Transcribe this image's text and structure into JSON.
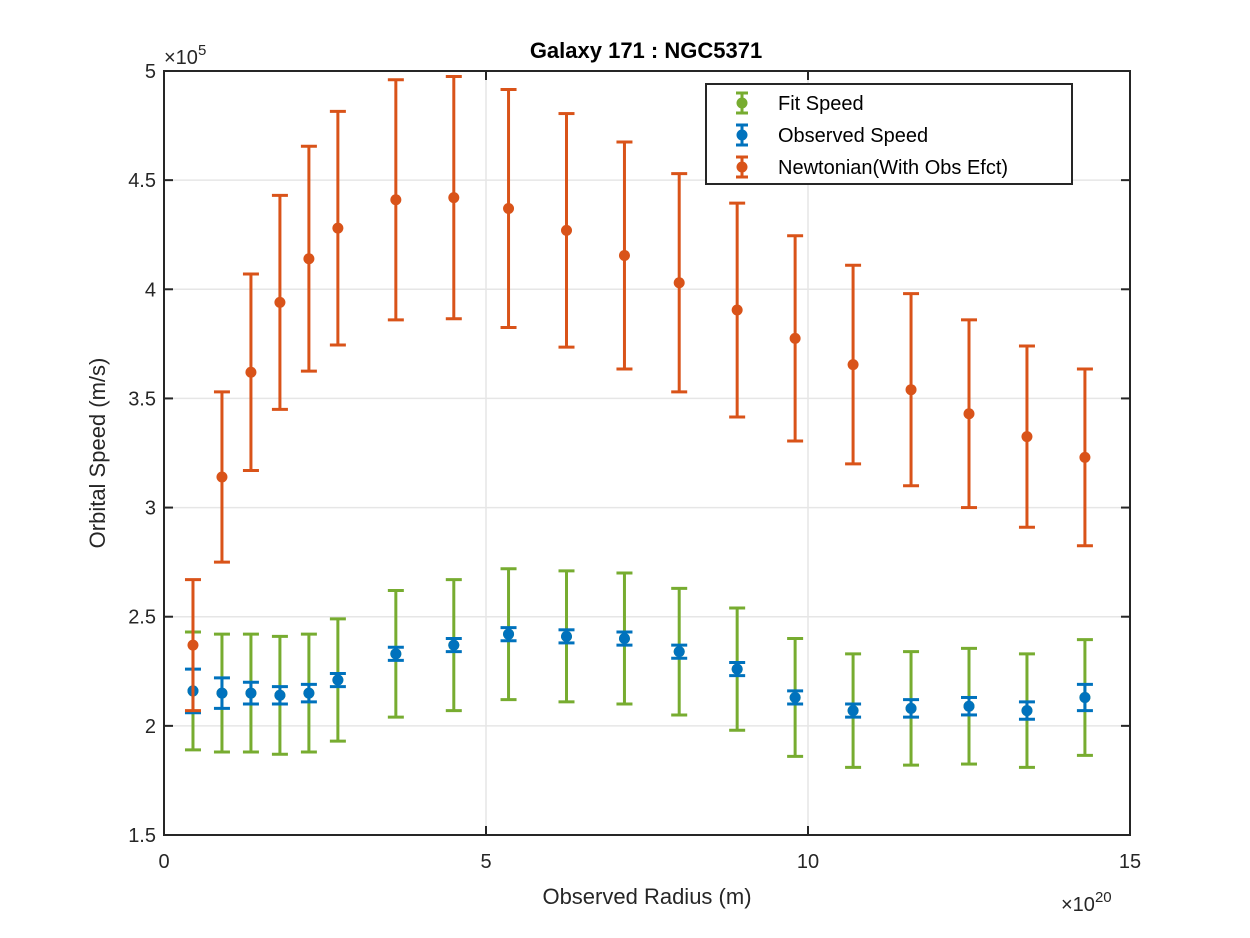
{
  "chart_data": {
    "type": "scatter",
    "title": "Galaxy 171 : NGC5371",
    "xlabel": "Observed Radius (m)",
    "ylabel": "Orbital Speed (m/s)",
    "x_multiplier_base": "×10",
    "x_multiplier_exp": "20",
    "y_multiplier_base": "×10",
    "y_multiplier_exp": "5",
    "xlim": [
      0,
      15
    ],
    "ylim": [
      1.5,
      5
    ],
    "xticks": [
      0,
      5,
      10,
      15
    ],
    "xtick_labels": [
      "0",
      "5",
      "10",
      "15"
    ],
    "yticks": [
      1.5,
      2,
      2.5,
      3,
      3.5,
      4,
      4.5,
      5
    ],
    "ytick_labels": [
      "1.5",
      "2",
      "2.5",
      "3",
      "3.5",
      "4",
      "4.5",
      "5"
    ],
    "grid": true,
    "legend_position": "top-right",
    "x": [
      0.45,
      0.9,
      1.35,
      1.8,
      2.25,
      2.7,
      3.6,
      4.5,
      5.35,
      6.25,
      7.15,
      8.0,
      8.9,
      9.8,
      10.7,
      11.6,
      12.5,
      13.4,
      14.3
    ],
    "series": [
      {
        "name": "Fit Speed",
        "color": "#77ac30",
        "values": [
          2.16,
          2.15,
          2.15,
          2.14,
          2.15,
          2.21,
          2.33,
          2.37,
          2.42,
          2.41,
          2.4,
          2.34,
          2.26,
          2.13,
          2.07,
          2.08,
          2.09,
          2.07,
          2.13
        ],
        "err": [
          0.27,
          0.27,
          0.27,
          0.27,
          0.27,
          0.28,
          0.29,
          0.3,
          0.3,
          0.3,
          0.3,
          0.29,
          0.28,
          0.27,
          0.26,
          0.26,
          0.265,
          0.26,
          0.265
        ]
      },
      {
        "name": "Observed Speed",
        "color": "#0072bd",
        "values": [
          2.16,
          2.15,
          2.15,
          2.14,
          2.15,
          2.21,
          2.33,
          2.37,
          2.42,
          2.41,
          2.4,
          2.34,
          2.26,
          2.13,
          2.07,
          2.08,
          2.09,
          2.07,
          2.13
        ],
        "err": [
          0.1,
          0.07,
          0.05,
          0.04,
          0.04,
          0.03,
          0.03,
          0.03,
          0.03,
          0.03,
          0.03,
          0.03,
          0.03,
          0.03,
          0.03,
          0.04,
          0.04,
          0.04,
          0.06
        ]
      },
      {
        "name": "Newtonian(With Obs Efct)",
        "color": "#d95319",
        "values": [
          2.37,
          3.14,
          3.62,
          3.94,
          4.14,
          4.28,
          4.41,
          4.42,
          4.37,
          4.27,
          4.155,
          4.03,
          3.905,
          3.775,
          3.655,
          3.54,
          3.43,
          3.325,
          3.23
        ],
        "err": [
          0.3,
          0.39,
          0.45,
          0.49,
          0.515,
          0.535,
          0.55,
          0.555,
          0.545,
          0.535,
          0.52,
          0.5,
          0.49,
          0.47,
          0.455,
          0.44,
          0.43,
          0.415,
          0.405
        ]
      }
    ]
  }
}
